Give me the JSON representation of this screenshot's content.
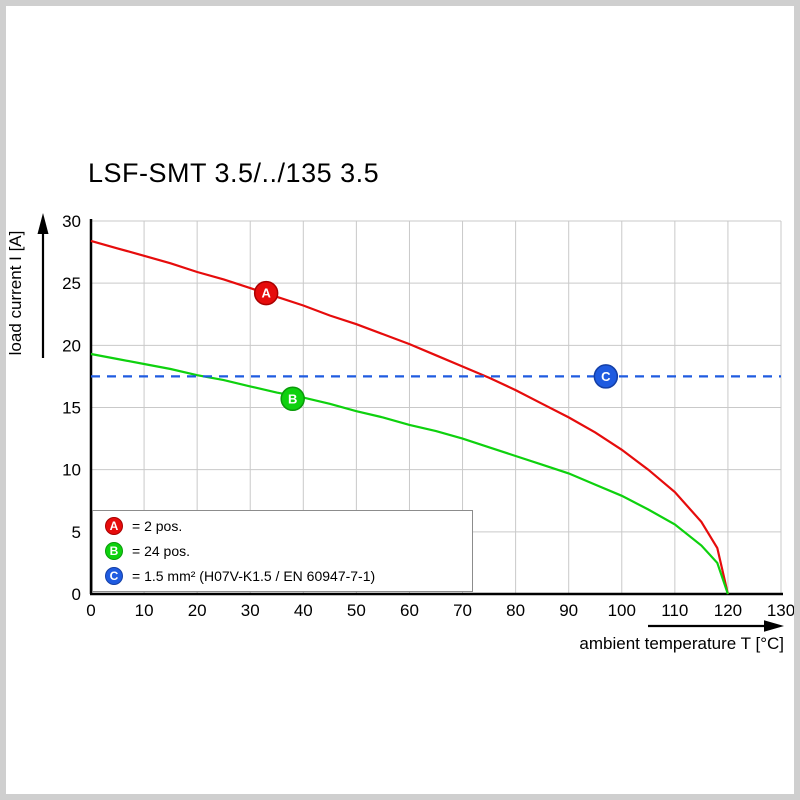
{
  "chart_data": {
    "type": "line",
    "title": "LSF-SMT 3.5/../135 3.5",
    "xlabel": "ambient temperature T [°C]",
    "ylabel": "load current I [A]",
    "xlim": [
      0,
      130
    ],
    "ylim": [
      0,
      30
    ],
    "xticks": [
      0,
      10,
      20,
      30,
      40,
      50,
      60,
      70,
      80,
      90,
      100,
      110,
      120,
      130
    ],
    "yticks": [
      0,
      5,
      10,
      15,
      20,
      25,
      30
    ],
    "grid": true,
    "grid_color": "#c9c9c9",
    "axis_color": "#000000",
    "legend_position": "bottom-left",
    "series": [
      {
        "name": "A",
        "label": "= 2 pos.",
        "color": "#e60c0c",
        "dark": "#a80000",
        "dashed": false,
        "marker": [
          33,
          24.2
        ],
        "points": [
          [
            0,
            28.4
          ],
          [
            5,
            27.8
          ],
          [
            10,
            27.2
          ],
          [
            15,
            26.6
          ],
          [
            20,
            25.9
          ],
          [
            25,
            25.3
          ],
          [
            30,
            24.6
          ],
          [
            35,
            23.9
          ],
          [
            40,
            23.2
          ],
          [
            45,
            22.4
          ],
          [
            50,
            21.7
          ],
          [
            55,
            20.9
          ],
          [
            60,
            20.1
          ],
          [
            65,
            19.2
          ],
          [
            70,
            18.3
          ],
          [
            75,
            17.4
          ],
          [
            80,
            16.4
          ],
          [
            85,
            15.3
          ],
          [
            90,
            14.2
          ],
          [
            95,
            13.0
          ],
          [
            100,
            11.6
          ],
          [
            105,
            10.0
          ],
          [
            110,
            8.2
          ],
          [
            115,
            5.8
          ],
          [
            118,
            3.7
          ],
          [
            120,
            0
          ]
        ]
      },
      {
        "name": "B",
        "label": "= 24 pos.",
        "color": "#0ed10e",
        "dark": "#0a9a0a",
        "dashed": false,
        "marker": [
          38,
          15.7
        ],
        "points": [
          [
            0,
            19.3
          ],
          [
            5,
            18.9
          ],
          [
            10,
            18.5
          ],
          [
            15,
            18.1
          ],
          [
            20,
            17.6
          ],
          [
            25,
            17.2
          ],
          [
            30,
            16.7
          ],
          [
            35,
            16.2
          ],
          [
            40,
            15.8
          ],
          [
            45,
            15.3
          ],
          [
            50,
            14.7
          ],
          [
            55,
            14.2
          ],
          [
            60,
            13.6
          ],
          [
            65,
            13.1
          ],
          [
            70,
            12.5
          ],
          [
            75,
            11.8
          ],
          [
            80,
            11.1
          ],
          [
            85,
            10.4
          ],
          [
            90,
            9.7
          ],
          [
            95,
            8.8
          ],
          [
            100,
            7.9
          ],
          [
            105,
            6.8
          ],
          [
            110,
            5.6
          ],
          [
            115,
            3.9
          ],
          [
            118,
            2.5
          ],
          [
            120,
            0
          ]
        ]
      },
      {
        "name": "C",
        "label": "= 1.5 mm² (H07V-K1.5 / EN 60947-7-1)",
        "color": "#1f5be0",
        "dark": "#143fa6",
        "dashed": true,
        "marker": [
          97,
          17.5
        ],
        "points": [
          [
            0,
            17.5
          ],
          [
            130,
            17.5
          ]
        ]
      }
    ]
  }
}
